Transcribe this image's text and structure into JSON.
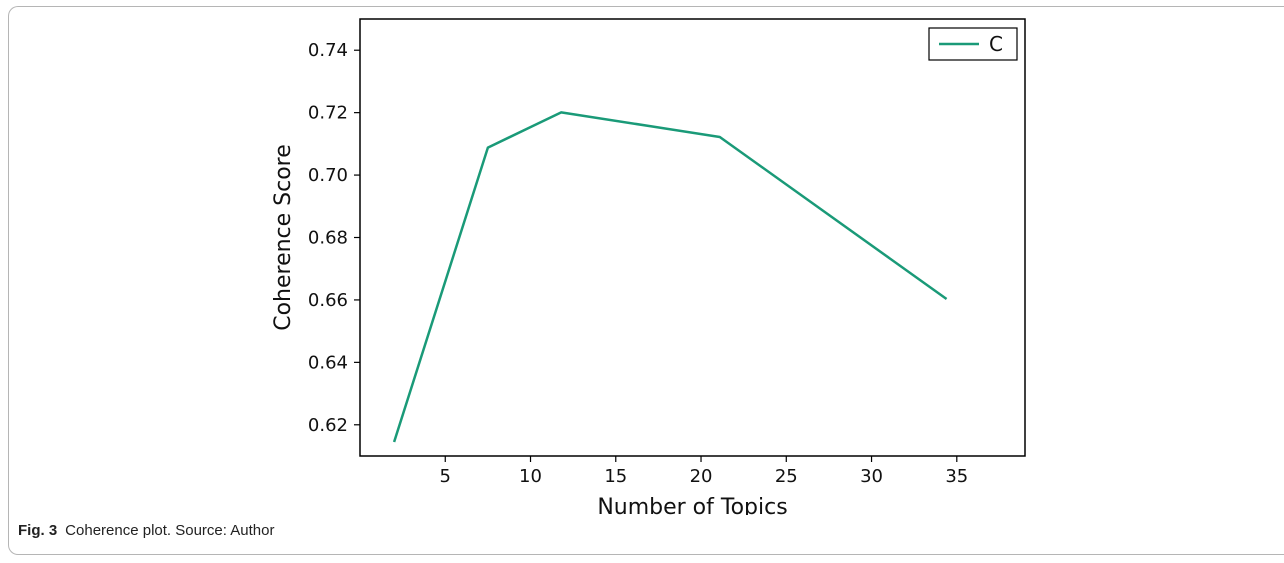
{
  "chart_data": {
    "type": "line",
    "xlabel": "Number of Topics",
    "ylabel": "Coherence Score",
    "xlim": [
      0,
      39
    ],
    "ylim": [
      0.61,
      0.75
    ],
    "xticks": [
      5,
      10,
      15,
      20,
      25,
      30,
      35
    ],
    "yticks": [
      0.62,
      0.64,
      0.66,
      0.68,
      0.7,
      0.72,
      0.74
    ],
    "xtick_labels": [
      "5",
      "10",
      "15",
      "20",
      "25",
      "30",
      "35"
    ],
    "ytick_labels": [
      "0.62",
      "0.64",
      "0.66",
      "0.68",
      "0.70",
      "0.72",
      "0.74"
    ],
    "legend_position": "top-right",
    "grid": false,
    "series": [
      {
        "name": "C",
        "color": "#1a9a78",
        "x": [
          2,
          7.5,
          11.8,
          21.1,
          34.4
        ],
        "y": [
          0.6145,
          0.7088,
          0.7201,
          0.7122,
          0.6603
        ]
      }
    ]
  },
  "caption": {
    "label": "Fig. 3",
    "text": "Coherence plot. Source: Author"
  }
}
